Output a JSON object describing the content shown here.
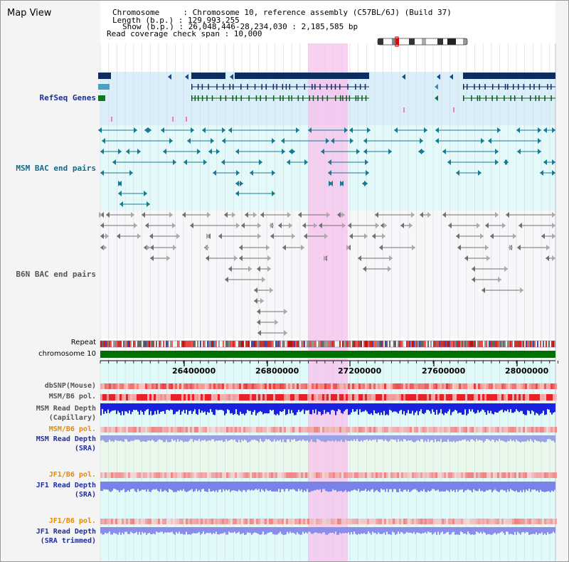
{
  "page": {
    "title": "Map View"
  },
  "info": {
    "chromosome": "Chromosome     : Chromosome 10, reference assembly (C57BL/6J) (Build 37)",
    "length": "Length (b.p.) : 129,993,255",
    "show": "Show (b.p.) : 26,048,446-28,234,030 : 2,185,585 bp",
    "coverage": "Read coverage check span : 10,000"
  },
  "tracks": {
    "refseq": "RefSeq Genes",
    "msm_bac": "MSM BAC end pairs",
    "b6n_bac": "B6N BAC end pairs",
    "repeat": "Repeat",
    "chromosome": "chromosome 10",
    "dbsnp": "dbSNP(Mouse)",
    "msm_b6_pol_1": "MSM/B6 pol.",
    "msm_depth_cap_1": "MSM Read Depth",
    "msm_depth_cap_2": "(Capillary)",
    "msm_b6_pol_2": "MSM/B6 pol.",
    "msm_depth_sra_1": "MSM Read Depth",
    "msm_depth_sra_2": "(SRA)",
    "jf1_b6_pol_1": "JF1/B6 pol.",
    "jf1_depth_sra_1": "JF1 Read Depth",
    "jf1_depth_sra_2": "(SRA)",
    "jf1_b6_pol_2": "JF1/B6 pol.",
    "jf1_depth_trim_1": "JF1 Read Depth",
    "jf1_depth_trim_2": "(SRA trimmed)"
  },
  "axis": {
    "ticks": [
      "26400000",
      "26800000",
      "27200000",
      "27600000",
      "28000000"
    ]
  },
  "colors": {
    "refseq_label": "#1c2ea0",
    "msm_label": "#156a86",
    "b6n_label": "#555555",
    "orange_label": "#e48a00",
    "blue_label": "#1c2ea0",
    "highlight": "#f8c0ec",
    "chromosome_bar": "#007000"
  }
}
